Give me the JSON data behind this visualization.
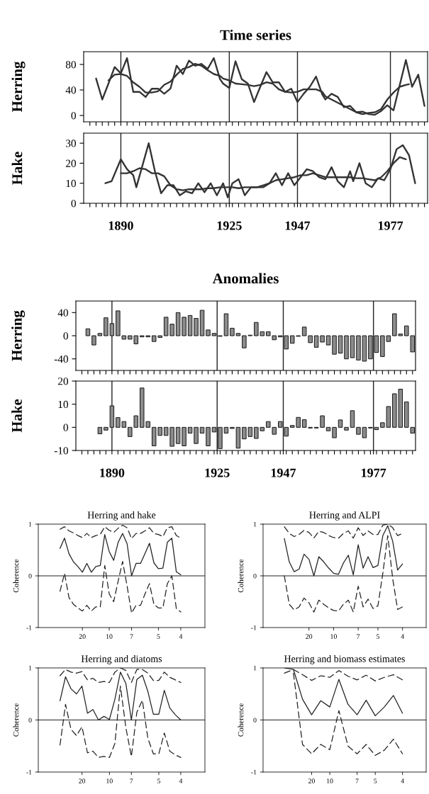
{
  "chart_data": [
    {
      "type": "line",
      "title": "Time series",
      "ylabel": "Herring",
      "xlim": [
        1878,
        1989
      ],
      "ylim": [
        -10,
        100
      ],
      "yticks": [
        0,
        40,
        80
      ],
      "tick_labels": "y",
      "xticks": [
        {
          "value": 1880,
          "label": null
        },
        {
          "value": 1882,
          "label": null
        },
        {
          "value": 1884,
          "label": null
        },
        {
          "value": 1886,
          "label": null
        },
        {
          "value": 1888,
          "label": null
        },
        {
          "value": 1890,
          "label": null
        },
        {
          "value": 1892,
          "label": null
        },
        {
          "value": 1894,
          "label": null
        },
        {
          "value": 1896,
          "label": null
        },
        {
          "value": 1898,
          "label": null
        },
        {
          "value": 1900,
          "label": null
        },
        {
          "value": 1902,
          "label": null
        },
        {
          "value": 1904,
          "label": null
        },
        {
          "value": 1906,
          "label": null
        },
        {
          "value": 1908,
          "label": null
        },
        {
          "value": 1910,
          "label": null
        },
        {
          "value": 1912,
          "label": null
        },
        {
          "value": 1914,
          "label": null
        },
        {
          "value": 1916,
          "label": null
        },
        {
          "value": 1918,
          "label": null
        },
        {
          "value": 1920,
          "label": null
        },
        {
          "value": 1922,
          "label": null
        },
        {
          "value": 1924,
          "label": null
        },
        {
          "value": 1926,
          "label": null
        },
        {
          "value": 1928,
          "label": null
        },
        {
          "value": 1930,
          "label": null
        },
        {
          "value": 1932,
          "label": null
        },
        {
          "value": 1934,
          "label": null
        },
        {
          "value": 1936,
          "label": null
        },
        {
          "value": 1938,
          "label": null
        },
        {
          "value": 1940,
          "label": null
        },
        {
          "value": 1942,
          "label": null
        },
        {
          "value": 1944,
          "label": null
        },
        {
          "value": 1946,
          "label": null
        },
        {
          "value": 1948,
          "label": null
        },
        {
          "value": 1950,
          "label": null
        },
        {
          "value": 1952,
          "label": null
        },
        {
          "value": 1954,
          "label": null
        },
        {
          "value": 1956,
          "label": null
        },
        {
          "value": 1958,
          "label": null
        },
        {
          "value": 1960,
          "label": null
        },
        {
          "value": 1962,
          "label": null
        },
        {
          "value": 1964,
          "label": null
        },
        {
          "value": 1966,
          "label": null
        },
        {
          "value": 1968,
          "label": null
        },
        {
          "value": 1970,
          "label": null
        },
        {
          "value": 1972,
          "label": null
        },
        {
          "value": 1974,
          "label": null
        },
        {
          "value": 1976,
          "label": null
        },
        {
          "value": 1978,
          "label": null
        },
        {
          "value": 1980,
          "label": null
        },
        {
          "value": 1982,
          "label": null
        },
        {
          "value": 1984,
          "label": null
        },
        {
          "value": 1986,
          "label": null
        },
        {
          "value": 1988,
          "label": null
        }
      ],
      "ref_lines": [
        {
          "axis": "x",
          "value": 1890,
          "color": "#222222"
        },
        {
          "axis": "x",
          "value": 1925,
          "color": "#222222"
        },
        {
          "axis": "x",
          "value": 1947,
          "color": "#222222"
        },
        {
          "axis": "x",
          "value": 1977,
          "color": "#222222"
        }
      ],
      "series": [
        {
          "color": "#333333",
          "x": [
            1882,
            1884,
            1886,
            1888,
            1890,
            1892,
            1894,
            1896,
            1898,
            1900,
            1902,
            1904,
            1906,
            1908,
            1910,
            1912,
            1914,
            1916,
            1918,
            1920,
            1922,
            1923,
            1925,
            1927,
            1929,
            1931,
            1933,
            1935,
            1937,
            1939,
            1941,
            1943,
            1945,
            1947,
            1949,
            1951,
            1953,
            1955,
            1956,
            1958,
            1960,
            1962,
            1964,
            1966,
            1968,
            1970,
            1972,
            1974,
            1976,
            1978,
            1982,
            1984,
            1986,
            1988
          ],
          "values": [
            58,
            25,
            50,
            76,
            66,
            90,
            37,
            37,
            29,
            42,
            42,
            34,
            42,
            78,
            65,
            86,
            78,
            81,
            73,
            90,
            57,
            50,
            43,
            85,
            57,
            50,
            21,
            45,
            68,
            52,
            52,
            37,
            42,
            21,
            34,
            45,
            61,
            33,
            25,
            34,
            29,
            13,
            15,
            5,
            6,
            2,
            1,
            7,
            16,
            8,
            87,
            45,
            64,
            15
          ]
        },
        {
          "color": "#333333",
          "x": [
            1886,
            1888,
            1890,
            1892,
            1894,
            1896,
            1898,
            1900,
            1902,
            1904,
            1906,
            1908,
            1910,
            1912,
            1914,
            1916,
            1918,
            1920,
            1922,
            1923,
            1925,
            1927,
            1929,
            1931,
            1933,
            1935,
            1937,
            1939,
            1941,
            1943,
            1945,
            1947,
            1949,
            1951,
            1953,
            1955,
            1956,
            1958,
            1960,
            1962,
            1964,
            1966,
            1968,
            1970,
            1972,
            1974,
            1976,
            1978,
            1980,
            1982,
            1983
          ],
          "values": [
            55,
            64,
            65,
            62,
            52,
            45,
            36,
            36,
            38,
            48,
            53,
            64,
            73,
            76,
            81,
            78,
            71,
            65,
            62,
            58,
            55,
            50,
            49,
            48,
            46,
            48,
            52,
            50,
            41,
            37,
            36,
            37,
            41,
            41,
            41,
            37,
            30,
            25,
            20,
            15,
            10,
            5,
            2,
            4,
            5,
            10,
            25,
            36,
            45,
            48,
            49
          ]
        }
      ]
    },
    {
      "type": "line",
      "ylabel": "Hake",
      "xlim": [
        1878,
        1989
      ],
      "ylim": [
        0,
        35
      ],
      "yticks": [
        0,
        10,
        20,
        30
      ],
      "xticks": [
        {
          "value": 1880,
          "label": null
        },
        {
          "value": 1882,
          "label": null
        },
        {
          "value": 1884,
          "label": null
        },
        {
          "value": 1886,
          "label": null
        },
        {
          "value": 1888,
          "label": null
        },
        1890,
        {
          "value": 1892,
          "label": null
        },
        {
          "value": 1894,
          "label": null
        },
        {
          "value": 1896,
          "label": null
        },
        {
          "value": 1898,
          "label": null
        },
        {
          "value": 1900,
          "label": null
        },
        {
          "value": 1902,
          "label": null
        },
        {
          "value": 1904,
          "label": null
        },
        {
          "value": 1906,
          "label": null
        },
        {
          "value": 1908,
          "label": null
        },
        {
          "value": 1910,
          "label": null
        },
        {
          "value": 1912,
          "label": null
        },
        {
          "value": 1914,
          "label": null
        },
        {
          "value": 1916,
          "label": null
        },
        {
          "value": 1918,
          "label": null
        },
        {
          "value": 1920,
          "label": null
        },
        {
          "value": 1922,
          "label": null
        },
        {
          "value": 1924,
          "label": null
        },
        1925,
        {
          "value": 1926,
          "label": null
        },
        {
          "value": 1928,
          "label": null
        },
        {
          "value": 1930,
          "label": null
        },
        {
          "value": 1932,
          "label": null
        },
        {
          "value": 1934,
          "label": null
        },
        {
          "value": 1936,
          "label": null
        },
        {
          "value": 1938,
          "label": null
        },
        {
          "value": 1940,
          "label": null
        },
        {
          "value": 1942,
          "label": null
        },
        {
          "value": 1944,
          "label": null
        },
        {
          "value": 1946,
          "label": null
        },
        1947,
        {
          "value": 1948,
          "label": null
        },
        {
          "value": 1950,
          "label": null
        },
        {
          "value": 1952,
          "label": null
        },
        {
          "value": 1954,
          "label": null
        },
        {
          "value": 1956,
          "label": null
        },
        {
          "value": 1958,
          "label": null
        },
        {
          "value": 1960,
          "label": null
        },
        {
          "value": 1962,
          "label": null
        },
        {
          "value": 1964,
          "label": null
        },
        {
          "value": 1966,
          "label": null
        },
        {
          "value": 1968,
          "label": null
        },
        {
          "value": 1970,
          "label": null
        },
        {
          "value": 1972,
          "label": null
        },
        {
          "value": 1974,
          "label": null
        },
        {
          "value": 1976,
          "label": null
        },
        1977,
        {
          "value": 1978,
          "label": null
        },
        {
          "value": 1980,
          "label": null
        },
        {
          "value": 1982,
          "label": null
        },
        {
          "value": 1984,
          "label": null
        },
        {
          "value": 1986,
          "label": null
        },
        {
          "value": 1988,
          "label": null
        }
      ],
      "ref_lines": [
        {
          "axis": "x",
          "value": 1890,
          "color": "#222222"
        },
        {
          "axis": "x",
          "value": 1925,
          "color": "#222222"
        },
        {
          "axis": "x",
          "value": 1947,
          "color": "#222222"
        },
        {
          "axis": "x",
          "value": 1977,
          "color": "#222222"
        }
      ],
      "series": [
        {
          "color": "#333333",
          "x": [
            1885,
            1887,
            1890,
            1892,
            1894,
            1895,
            1899,
            1901,
            1903,
            1905,
            1907,
            1909,
            1911,
            1913,
            1915,
            1917,
            1919,
            1921,
            1923,
            1924.5,
            1926,
            1928,
            1930,
            1932,
            1936,
            1938,
            1940,
            1942,
            1944,
            1946,
            1948,
            1950,
            1952,
            1954,
            1956,
            1958,
            1960,
            1962,
            1964,
            1965,
            1967,
            1969,
            1971,
            1973,
            1975,
            1977,
            1979,
            1981,
            1983,
            1985
          ],
          "values": [
            10,
            11,
            22,
            17,
            14,
            8,
            30,
            16,
            5,
            9,
            9,
            4,
            6,
            5,
            10,
            5.5,
            10,
            4,
            10,
            3,
            10,
            12,
            4,
            8,
            8,
            10,
            15,
            9,
            15,
            9,
            13,
            17,
            16,
            13,
            12,
            18,
            11,
            8,
            16,
            11,
            20,
            10,
            8,
            12.5,
            11.5,
            17,
            27,
            29,
            24,
            10
          ]
        },
        {
          "color": "#333333",
          "x": [
            1890,
            1892,
            1894,
            1896,
            1898,
            1900,
            1902,
            1904,
            1906,
            1908,
            1910,
            1912,
            1914,
            1916,
            1918,
            1920,
            1922,
            1924,
            1926,
            1928,
            1930,
            1932,
            1934,
            1936,
            1938,
            1940,
            1942,
            1944,
            1946,
            1948,
            1950,
            1952,
            1954,
            1956,
            1958,
            1960,
            1962,
            1964,
            1966,
            1968,
            1970,
            1972,
            1974,
            1976,
            1978,
            1980,
            1982
          ],
          "values": [
            15,
            15,
            16,
            17.5,
            17,
            15,
            15,
            13.5,
            9,
            7,
            6.5,
            7,
            7,
            7,
            7.5,
            7.5,
            8,
            8,
            8,
            7.5,
            8,
            8,
            8,
            9,
            10,
            11.5,
            12,
            12.5,
            13,
            14,
            14,
            15,
            14,
            13,
            13,
            13,
            13,
            13,
            12.5,
            12.5,
            12,
            11.5,
            13,
            16,
            20,
            23,
            22
          ]
        }
      ]
    },
    {
      "type": "bar",
      "title": "Anomalies",
      "ylabel": "Herring",
      "xlim": [
        1878,
        1991
      ],
      "ylim": [
        -60,
        60
      ],
      "yticks": [
        -40,
        0,
        40
      ],
      "tick_labels": "y",
      "xticks": [
        {
          "value": 1880,
          "label": null
        },
        {
          "value": 1882,
          "label": null
        },
        {
          "value": 1884,
          "label": null
        },
        {
          "value": 1886,
          "label": null
        },
        {
          "value": 1888,
          "label": null
        },
        {
          "value": 1890,
          "label": null
        },
        {
          "value": 1892,
          "label": null
        },
        {
          "value": 1894,
          "label": null
        },
        {
          "value": 1896,
          "label": null
        },
        {
          "value": 1898,
          "label": null
        },
        {
          "value": 1900,
          "label": null
        },
        {
          "value": 1902,
          "label": null
        },
        {
          "value": 1904,
          "label": null
        },
        {
          "value": 1906,
          "label": null
        },
        {
          "value": 1908,
          "label": null
        },
        {
          "value": 1910,
          "label": null
        },
        {
          "value": 1912,
          "label": null
        },
        {
          "value": 1914,
          "label": null
        },
        {
          "value": 1916,
          "label": null
        },
        {
          "value": 1918,
          "label": null
        },
        {
          "value": 1920,
          "label": null
        },
        {
          "value": 1922,
          "label": null
        },
        {
          "value": 1924,
          "label": null
        },
        {
          "value": 1926,
          "label": null
        },
        {
          "value": 1928,
          "label": null
        },
        {
          "value": 1930,
          "label": null
        },
        {
          "value": 1932,
          "label": null
        },
        {
          "value": 1934,
          "label": null
        },
        {
          "value": 1936,
          "label": null
        },
        {
          "value": 1938,
          "label": null
        },
        {
          "value": 1940,
          "label": null
        },
        {
          "value": 1942,
          "label": null
        },
        {
          "value": 1944,
          "label": null
        },
        {
          "value": 1946,
          "label": null
        },
        {
          "value": 1948,
          "label": null
        },
        {
          "value": 1950,
          "label": null
        },
        {
          "value": 1952,
          "label": null
        },
        {
          "value": 1954,
          "label": null
        },
        {
          "value": 1956,
          "label": null
        },
        {
          "value": 1958,
          "label": null
        },
        {
          "value": 1960,
          "label": null
        },
        {
          "value": 1962,
          "label": null
        },
        {
          "value": 1964,
          "label": null
        },
        {
          "value": 1966,
          "label": null
        },
        {
          "value": 1968,
          "label": null
        },
        {
          "value": 1970,
          "label": null
        },
        {
          "value": 1972,
          "label": null
        },
        {
          "value": 1974,
          "label": null
        },
        {
          "value": 1976,
          "label": null
        },
        {
          "value": 1978,
          "label": null
        },
        {
          "value": 1980,
          "label": null
        },
        {
          "value": 1982,
          "label": null
        },
        {
          "value": 1984,
          "label": null
        },
        {
          "value": 1986,
          "label": null
        },
        {
          "value": 1988,
          "label": null
        },
        {
          "value": 1990,
          "label": null
        }
      ],
      "ref_lines": [
        {
          "axis": "x",
          "value": 1890,
          "color": "#222222"
        },
        {
          "axis": "x",
          "value": 1925,
          "color": "#222222"
        },
        {
          "axis": "x",
          "value": 1947,
          "color": "#222222"
        },
        {
          "axis": "x",
          "value": 1977,
          "color": "#222222"
        }
      ],
      "series": [
        {
          "color": "#8c8c8c",
          "x": [
            1882,
            1884,
            1886,
            1888,
            1890,
            1892,
            1894,
            1896,
            1898,
            1900,
            1902,
            1904,
            1906,
            1908,
            1910,
            1912,
            1914,
            1916,
            1918,
            1920,
            1922,
            1924,
            1926,
            1928,
            1930,
            1932,
            1934,
            1936,
            1938,
            1940,
            1942,
            1944,
            1946,
            1948,
            1950,
            1952,
            1954,
            1956,
            1958,
            1960,
            1962,
            1964,
            1966,
            1968,
            1970,
            1972,
            1974,
            1976,
            1978,
            1980,
            1982,
            1984,
            1986,
            1988,
            1990
          ],
          "values": [
            12,
            -16,
            4,
            31,
            21,
            43,
            -6,
            -6,
            -14,
            -2,
            -2,
            -10,
            -3,
            32,
            20,
            40,
            32,
            35,
            30,
            44,
            10,
            4,
            -1,
            38,
            13,
            4,
            -21,
            1,
            23,
            7,
            7,
            -7,
            -2,
            -23,
            -13,
            -1,
            15,
            -12,
            -20,
            -11,
            -16,
            -32,
            -30,
            -40,
            -38,
            -42,
            -44,
            -40,
            -29,
            -36,
            -10,
            38,
            3,
            17,
            -28
          ]
        }
      ]
    },
    {
      "type": "bar",
      "ylabel": "Hake",
      "xlim": [
        1878,
        1991
      ],
      "ylim": [
        -10,
        20
      ],
      "yticks": [
        -10,
        0,
        10,
        20
      ],
      "xticks": [
        {
          "value": 1880,
          "label": null
        },
        {
          "value": 1882,
          "label": null
        },
        {
          "value": 1884,
          "label": null
        },
        {
          "value": 1886,
          "label": null
        },
        {
          "value": 1888,
          "label": null
        },
        1890,
        {
          "value": 1892,
          "label": null
        },
        {
          "value": 1894,
          "label": null
        },
        {
          "value": 1896,
          "label": null
        },
        {
          "value": 1898,
          "label": null
        },
        {
          "value": 1900,
          "label": null
        },
        {
          "value": 1902,
          "label": null
        },
        {
          "value": 1904,
          "label": null
        },
        {
          "value": 1906,
          "label": null
        },
        {
          "value": 1908,
          "label": null
        },
        {
          "value": 1910,
          "label": null
        },
        {
          "value": 1912,
          "label": null
        },
        {
          "value": 1914,
          "label": null
        },
        {
          "value": 1916,
          "label": null
        },
        {
          "value": 1918,
          "label": null
        },
        {
          "value": 1920,
          "label": null
        },
        {
          "value": 1922,
          "label": null
        },
        {
          "value": 1924,
          "label": null
        },
        1925,
        {
          "value": 1926,
          "label": null
        },
        {
          "value": 1928,
          "label": null
        },
        {
          "value": 1930,
          "label": null
        },
        {
          "value": 1932,
          "label": null
        },
        {
          "value": 1934,
          "label": null
        },
        {
          "value": 1936,
          "label": null
        },
        {
          "value": 1938,
          "label": null
        },
        {
          "value": 1940,
          "label": null
        },
        {
          "value": 1942,
          "label": null
        },
        {
          "value": 1944,
          "label": null
        },
        {
          "value": 1946,
          "label": null
        },
        1947,
        {
          "value": 1948,
          "label": null
        },
        {
          "value": 1950,
          "label": null
        },
        {
          "value": 1952,
          "label": null
        },
        {
          "value": 1954,
          "label": null
        },
        {
          "value": 1956,
          "label": null
        },
        {
          "value": 1958,
          "label": null
        },
        {
          "value": 1960,
          "label": null
        },
        {
          "value": 1962,
          "label": null
        },
        {
          "value": 1964,
          "label": null
        },
        {
          "value": 1966,
          "label": null
        },
        {
          "value": 1968,
          "label": null
        },
        {
          "value": 1970,
          "label": null
        },
        {
          "value": 1972,
          "label": null
        },
        {
          "value": 1974,
          "label": null
        },
        {
          "value": 1976,
          "label": null
        },
        1977,
        {
          "value": 1978,
          "label": null
        },
        {
          "value": 1980,
          "label": null
        },
        {
          "value": 1982,
          "label": null
        },
        {
          "value": 1984,
          "label": null
        },
        {
          "value": 1986,
          "label": null
        },
        {
          "value": 1988,
          "label": null
        },
        {
          "value": 1990,
          "label": null
        }
      ],
      "ref_lines": [
        {
          "axis": "x",
          "value": 1890,
          "color": "#222222"
        },
        {
          "axis": "x",
          "value": 1925,
          "color": "#222222"
        },
        {
          "axis": "x",
          "value": 1947,
          "color": "#222222"
        },
        {
          "axis": "x",
          "value": 1977,
          "color": "#222222"
        }
      ],
      "series": [
        {
          "color": "#8c8c8c",
          "x": [
            1886,
            1888,
            1890,
            1892,
            1894,
            1896,
            1898,
            1900,
            1902,
            1904,
            1906,
            1908,
            1910,
            1912,
            1914,
            1916,
            1918,
            1920,
            1922,
            1924,
            1926,
            1928,
            1930,
            1932,
            1934,
            1936,
            1938,
            1940,
            1942,
            1944,
            1946,
            1948,
            1950,
            1952,
            1954,
            1956,
            1958,
            1960,
            1962,
            1964,
            1966,
            1968,
            1970,
            1972,
            1974,
            1976,
            1978,
            1980,
            1982,
            1984,
            1986,
            1988,
            1990
          ],
          "values": [
            -2.8,
            -1.2,
            9.3,
            4.2,
            2.5,
            -4,
            5,
            17,
            2.5,
            -8,
            -3.5,
            -3.5,
            -8.2,
            -7,
            -8,
            -2.5,
            -7,
            -2.5,
            -8,
            -2,
            -9.2,
            -2.5,
            -0.5,
            -9,
            -5,
            -4,
            -4.8,
            -1.5,
            2.5,
            -3,
            2.5,
            -3.8,
            0.8,
            4.3,
            3.3,
            -0.3,
            -0.3,
            5,
            -1.5,
            -4.5,
            3.2,
            -1.2,
            7.2,
            -3,
            -4.5,
            -0.3,
            -1,
            2,
            9,
            14.5,
            16.5,
            11,
            -2.5
          ]
        }
      ]
    },
    {
      "type": "line",
      "title": "Herring and hake",
      "ylabel": "Coherence",
      "ylim": [
        -1,
        1
      ],
      "yticks": [
        -1,
        0,
        1
      ],
      "categories": [
        null,
        null,
        null,
        null,
        null,
        "20",
        null,
        null,
        null,
        null,
        null,
        "10",
        null,
        null,
        null,
        null,
        "7",
        null,
        null,
        null,
        null,
        null,
        "5",
        null,
        null,
        null,
        null,
        "4"
      ],
      "ref_lines": [
        {
          "axis": "y",
          "value": 0,
          "color": "#222222"
        }
      ],
      "series": [
        {
          "color": "#222222",
          "line_style": "solid",
          "values": [
            0.53,
            0.73,
            0.43,
            0.27,
            0.18,
            0.07,
            0.24,
            0.07,
            0.18,
            0.2,
            0.8,
            0.47,
            0.3,
            0.65,
            0.82,
            0.62,
            0.0,
            0.24,
            0.24,
            0.43,
            0.63,
            0.25,
            0.14,
            0.15,
            0.65,
            0.73,
            0.08,
            0.02
          ]
        },
        {
          "color": "#222222",
          "line_style": "dashed",
          "values": [
            0.9,
            0.95,
            0.87,
            0.83,
            0.78,
            0.74,
            0.82,
            0.74,
            0.78,
            0.8,
            0.95,
            0.88,
            0.84,
            0.92,
            0.98,
            0.93,
            0.72,
            0.82,
            0.82,
            0.87,
            0.93,
            0.82,
            0.8,
            0.76,
            0.93,
            0.95,
            0.78,
            0.73
          ]
        },
        {
          "color": "#222222",
          "line_style": "dashed",
          "values": [
            -0.3,
            0.05,
            -0.42,
            -0.55,
            -0.62,
            -0.68,
            -0.57,
            -0.68,
            -0.6,
            -0.6,
            0.2,
            -0.35,
            -0.5,
            -0.1,
            0.28,
            -0.2,
            -0.72,
            -0.57,
            -0.57,
            -0.35,
            -0.15,
            -0.55,
            -0.62,
            -0.62,
            -0.15,
            0.0,
            -0.63,
            -0.7
          ]
        }
      ]
    },
    {
      "type": "line",
      "title": "Herring and ALPI",
      "ylabel": "Coherence",
      "ylim": [
        -1,
        1
      ],
      "yticks": [
        -1,
        0,
        1
      ],
      "categories": [
        null,
        null,
        null,
        null,
        null,
        "20",
        null,
        null,
        null,
        null,
        "10",
        null,
        null,
        null,
        null,
        "7",
        null,
        null,
        null,
        "5",
        null,
        null,
        null,
        null,
        "4"
      ],
      "ref_lines": [
        {
          "axis": "y",
          "value": 0,
          "color": "#222222"
        }
      ],
      "series": [
        {
          "color": "#222222",
          "line_style": "solid",
          "values": [
            0.72,
            0.27,
            0.08,
            0.13,
            0.42,
            0.32,
            0.0,
            0.37,
            0.27,
            0.15,
            0.05,
            0.03,
            0.25,
            0.4,
            0.02,
            0.6,
            0.15,
            0.37,
            0.16,
            0.2,
            0.78,
            0.97,
            0.67,
            0.11,
            0.23
          ]
        },
        {
          "color": "#222222",
          "line_style": "dashed",
          "values": [
            0.95,
            0.82,
            0.76,
            0.8,
            0.88,
            0.84,
            0.73,
            0.86,
            0.84,
            0.78,
            0.74,
            0.73,
            0.82,
            0.87,
            0.73,
            0.93,
            0.78,
            0.87,
            0.8,
            0.8,
            0.98,
            1.0,
            0.93,
            0.78,
            0.82
          ]
        },
        {
          "color": "#222222",
          "line_style": "dashed",
          "values": [
            0.0,
            -0.55,
            -0.66,
            -0.6,
            -0.43,
            -0.52,
            -0.7,
            -0.47,
            -0.55,
            -0.62,
            -0.67,
            -0.68,
            -0.55,
            -0.47,
            -0.7,
            -0.2,
            -0.6,
            -0.45,
            -0.63,
            -0.58,
            0.05,
            0.78,
            -0.05,
            -0.65,
            -0.6
          ]
        }
      ]
    },
    {
      "type": "line",
      "title": "Herring and diatoms",
      "ylabel": "Coherence",
      "ylim": [
        -1,
        1
      ],
      "yticks": [
        -1,
        0,
        1
      ],
      "categories": [
        null,
        null,
        null,
        null,
        "20",
        null,
        null,
        null,
        null,
        "10",
        null,
        null,
        null,
        "7",
        null,
        null,
        null,
        null,
        "5",
        null,
        null,
        null,
        "4"
      ],
      "ref_lines": [
        {
          "axis": "y",
          "value": 0,
          "color": "#222222"
        }
      ],
      "series": [
        {
          "color": "#222222",
          "line_style": "solid",
          "values": [
            0.37,
            0.83,
            0.6,
            0.5,
            0.65,
            0.13,
            0.2,
            0.0,
            0.07,
            0.01,
            0.4,
            0.92,
            0.7,
            0.0,
            0.78,
            0.86,
            0.55,
            0.11,
            0.11,
            0.57,
            0.23,
            0.1,
            0.0
          ]
        },
        {
          "color": "#222222",
          "line_style": "dashed",
          "values": [
            0.85,
            0.97,
            0.92,
            0.9,
            0.93,
            0.77,
            0.8,
            0.72,
            0.74,
            0.72,
            0.92,
            1.0,
            0.95,
            0.72,
            0.97,
            0.97,
            0.9,
            0.76,
            0.76,
            0.92,
            0.82,
            0.77,
            0.72
          ]
        },
        {
          "color": "#222222",
          "line_style": "dashed",
          "values": [
            -0.48,
            0.3,
            -0.18,
            -0.3,
            -0.13,
            -0.63,
            -0.6,
            -0.72,
            -0.7,
            -0.72,
            -0.45,
            0.65,
            -0.15,
            -0.7,
            0.15,
            0.38,
            -0.35,
            -0.65,
            -0.65,
            -0.25,
            -0.6,
            -0.67,
            -0.72
          ]
        }
      ]
    },
    {
      "type": "line",
      "title": "Herring and biomass estimates",
      "ylabel": "Coherence",
      "ylim": [
        -1,
        1
      ],
      "yticks": [
        -1,
        0,
        1
      ],
      "categories": [
        null,
        null,
        null,
        "20",
        null,
        "10",
        null,
        null,
        "7",
        null,
        "5",
        null,
        null,
        "4"
      ],
      "ref_lines": [
        {
          "axis": "y",
          "value": 0,
          "color": "#222222"
        }
      ],
      "series": [
        {
          "color": "#222222",
          "line_style": "solid",
          "values": [
            1.0,
            0.97,
            0.4,
            0.1,
            0.37,
            0.25,
            0.78,
            0.3,
            0.1,
            0.38,
            0.08,
            0.25,
            0.47,
            0.13
          ]
        },
        {
          "color": "#222222",
          "line_style": "dashed",
          "values": [
            0.9,
            0.97,
            0.87,
            0.76,
            0.85,
            0.82,
            0.95,
            0.84,
            0.77,
            0.86,
            0.75,
            0.82,
            0.87,
            0.77
          ]
        },
        {
          "color": "#222222",
          "line_style": "dashed",
          "values": [
            null,
            0.9,
            -0.47,
            -0.65,
            -0.47,
            -0.57,
            0.18,
            -0.5,
            -0.65,
            -0.47,
            -0.68,
            -0.58,
            -0.37,
            -0.65
          ]
        }
      ]
    }
  ]
}
